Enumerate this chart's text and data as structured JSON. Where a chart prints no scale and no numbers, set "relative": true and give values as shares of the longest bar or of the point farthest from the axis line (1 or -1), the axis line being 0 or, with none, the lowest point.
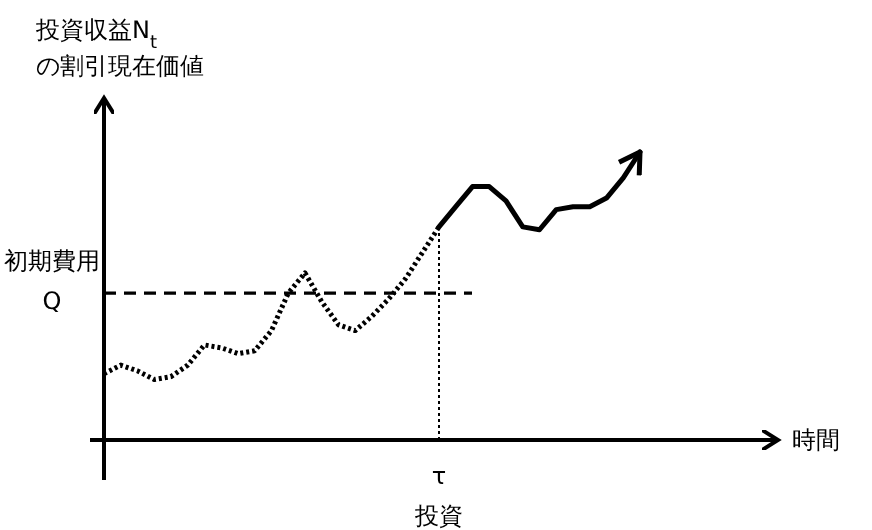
{
  "chart_data": {
    "type": "line",
    "relative": true,
    "ylabel": "投資収益N$_{t}$\nの割引現在価値",
    "categories": [
      null,
      null,
      null,
      null,
      null,
      null,
      null,
      null,
      null,
      null,
      null,
      null,
      null,
      null,
      null,
      null,
      null,
      null,
      null,
      null,
      null,
      null,
      null,
      null,
      null,
      null,
      null,
      null,
      null,
      null,
      null,
      null,
      null
    ],
    "series": [
      {
        "color": "#000000",
        "line_style": "dotted",
        "values": [
          0.23,
          0.26,
          0.24,
          0.21,
          0.22,
          0.26,
          0.33,
          0.32,
          0.3,
          0.31,
          0.38,
          0.51,
          0.58,
          0.48,
          0.4,
          0.38,
          0.43,
          0.49,
          0.56,
          0.65,
          0.74,
          null,
          null,
          null,
          null,
          null,
          null,
          null,
          null,
          null,
          null,
          null,
          null
        ]
      },
      {
        "color": "#000000",
        "line_style": "solid",
        "values": [
          null,
          null,
          null,
          null,
          null,
          null,
          null,
          null,
          null,
          null,
          null,
          null,
          null,
          null,
          null,
          null,
          null,
          null,
          null,
          null,
          0.74,
          0.81,
          0.88,
          0.88,
          0.83,
          0.74,
          0.73,
          0.8,
          0.81,
          0.81,
          0.84,
          0.91,
          1
        ]
      }
    ],
    "ref_lines": [
      {
        "axis": "y",
        "value": 0.51,
        "label": "初期費用\nQ",
        "line_style": "dashed"
      }
    ],
    "annotations": [
      "τ",
      "投資",
      "時間"
    ]
  }
}
